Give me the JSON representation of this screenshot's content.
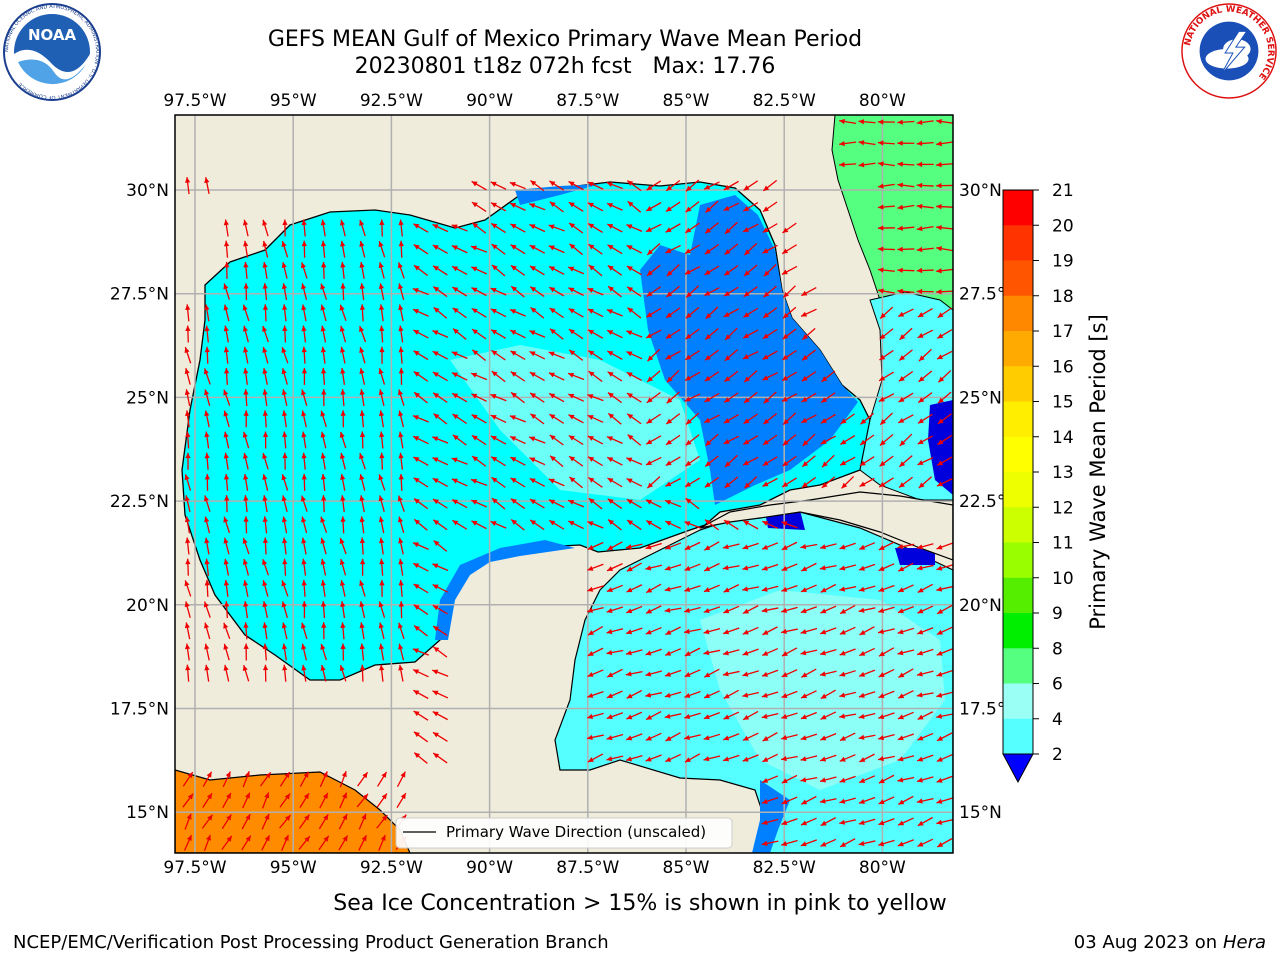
{
  "title": {
    "line1": "GEFS MEAN Gulf of Mexico Primary Wave Mean Period",
    "line2": "20230801 t18z 072h fcst   Max: 17.76"
  },
  "logos": {
    "noaa_text": "NOAA",
    "noaa_ring_text": "NATIONAL OCEANIC AND ATMOSPHERIC ADMINISTRATION · U.S. DEPARTMENT OF COMMERCE",
    "nws_ring_text": "NATIONAL WEATHER SERVICE"
  },
  "map": {
    "lon_ticks": [
      "97.5°W",
      "95°W",
      "92.5°W",
      "90°W",
      "87.5°W",
      "85°W",
      "82.5°W",
      "80°W"
    ],
    "lat_ticks_left": [
      "30°N",
      "27.5°N",
      "25°N",
      "22.5°N",
      "20°N",
      "17.5°N",
      "15°N"
    ],
    "lat_ticks_right": [
      "30°N",
      "27.5°",
      "25°N",
      "22.5°",
      "20°N",
      "17.5°",
      "15°N"
    ],
    "legend_label": "Primary Wave Direction (unscaled)",
    "colors": {
      "land": "#efecdc",
      "water_cyan": "#00ffff",
      "water_light": "#9afff5",
      "water_blue": "#0080ff",
      "water_dark": "#0000dd",
      "water_green": "#55ff80",
      "water_orange": "#ff8c00",
      "arrow": "#ee0000",
      "grid": "#b0b0b0"
    }
  },
  "colorbar": {
    "label": "Primary Wave Mean Period [s]",
    "ticks": [
      "21",
      "20",
      "19",
      "18",
      "17",
      "16",
      "15",
      "14",
      "13",
      "12",
      "11",
      "10",
      "9",
      "8",
      "6",
      "4",
      "2"
    ],
    "colors": [
      "#ff0000",
      "#ff3300",
      "#ff5500",
      "#ff8800",
      "#ffaa00",
      "#ffcc00",
      "#ffee00",
      "#ffff00",
      "#eeff00",
      "#ccff00",
      "#99ff00",
      "#55ee00",
      "#00ee00",
      "#55ff80",
      "#9afff5",
      "#55ffff",
      "#00ffff",
      "#0080ff",
      "#0000ff"
    ]
  },
  "bottom_text": "Sea Ice Concentration > 15% is shown in pink to yellow",
  "footer": {
    "left": "NCEP/EMC/Verification Post Processing Product Generation Branch",
    "right_date": "03 Aug 2023 on",
    "right_host": "Hera"
  }
}
